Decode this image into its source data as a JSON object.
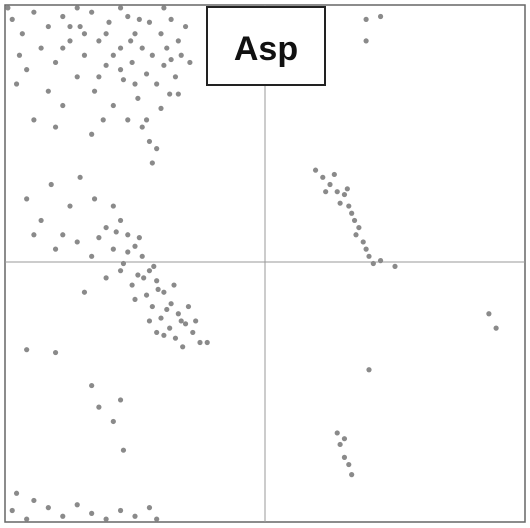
{
  "chart_data": {
    "type": "scatter",
    "title": "Asp",
    "color": "#8a8a8a",
    "xlim": [
      -180,
      180
    ],
    "ylim": [
      -180,
      180
    ],
    "x": [
      -175,
      -168,
      -160,
      -155,
      -150,
      -145,
      -140,
      -135,
      -130,
      -128,
      -125,
      -120,
      -118,
      -115,
      -110,
      -108,
      -105,
      -100,
      -98,
      -95,
      -92,
      -90,
      -88,
      -85,
      -82,
      -80,
      -78,
      -75,
      -72,
      -70,
      -68,
      -65,
      -62,
      -60,
      -58,
      -55,
      -52,
      -150,
      -165,
      -170,
      -140,
      -112,
      -95,
      -85,
      -80,
      -75,
      -78,
      -82,
      -72,
      -66,
      -160,
      -172,
      -178,
      -130,
      -100,
      -70,
      -120,
      -145,
      -110,
      -135,
      -90,
      -100,
      -115,
      -125,
      -60,
      -87,
      -65,
      -93,
      -105,
      -140,
      -110,
      -100,
      -95,
      -105,
      -90,
      -85,
      -98,
      -80,
      -88,
      -75,
      -92,
      -70,
      -82,
      -65,
      -78,
      -60,
      -72,
      -55,
      -66,
      -50,
      -62,
      -45,
      -58,
      -68,
      -74,
      -84,
      -95,
      -115,
      -120,
      -100,
      -90,
      -80,
      -70,
      -53,
      -63,
      -77,
      -87,
      -103,
      -48,
      -57,
      -75,
      -110,
      -125,
      -105,
      -118,
      -165,
      -155,
      -148,
      -140,
      -135,
      -128,
      -145,
      -130,
      -160,
      35,
      40,
      45,
      48,
      50,
      55,
      52,
      58,
      60,
      62,
      65,
      63,
      68,
      70,
      72,
      75,
      80,
      90,
      42,
      57,
      -175,
      -165,
      -150,
      -140,
      -130,
      -120,
      -110,
      -100,
      -90,
      -80,
      -75,
      -160,
      -172,
      -165,
      -145,
      -120,
      -115,
      -105,
      -100,
      -98,
      -40,
      70,
      70,
      80,
      155,
      160,
      72,
      50,
      52,
      55,
      58,
      60,
      55
    ],
    "y": [
      170,
      160,
      175,
      150,
      165,
      140,
      172,
      155,
      130,
      165,
      145,
      175,
      120,
      155,
      138,
      168,
      110,
      150,
      128,
      172,
      140,
      160,
      115,
      150,
      132,
      168,
      145,
      125,
      160,
      138,
      150,
      170,
      130,
      155,
      145,
      165,
      140,
      120,
      135,
      145,
      110,
      100,
      100,
      95,
      85,
      80,
      70,
      100,
      108,
      118,
      100,
      125,
      178,
      178,
      178,
      178,
      90,
      95,
      160,
      165,
      125,
      135,
      130,
      160,
      118,
      170,
      142,
      155,
      145,
      150,
      25,
      30,
      20,
      10,
      12,
      5,
      0,
      -5,
      -8,
      -12,
      -15,
      -20,
      -22,
      -28,
      -30,
      -35,
      -38,
      -42,
      -45,
      -48,
      -52,
      -55,
      -40,
      -32,
      -18,
      -10,
      8,
      18,
      5,
      -5,
      -25,
      -40,
      -50,
      -30,
      -15,
      -2,
      18,
      22,
      -40,
      -58,
      -48,
      -10,
      -20,
      40,
      45,
      45,
      30,
      55,
      20,
      40,
      60,
      10,
      15,
      20,
      65,
      60,
      55,
      62,
      50,
      48,
      42,
      40,
      35,
      30,
      25,
      20,
      15,
      10,
      5,
      0,
      2,
      -2,
      50,
      52,
      -172,
      -178,
      -170,
      -176,
      -168,
      -174,
      -178,
      -172,
      -176,
      -170,
      -178,
      -165,
      -160,
      -60,
      -62,
      -85,
      -100,
      -110,
      -95,
      -130,
      -55,
      155,
      170,
      172,
      -35,
      -45,
      -74,
      -118,
      -126,
      -135,
      -140,
      -147,
      -122
    ]
  }
}
